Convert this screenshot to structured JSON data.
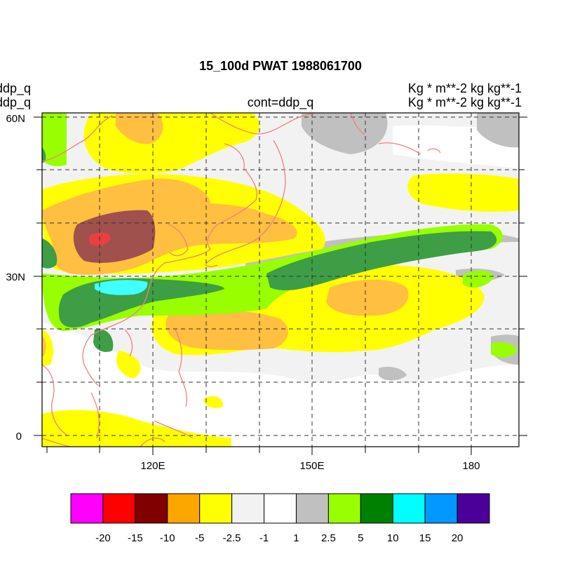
{
  "title": "15_100d PWAT  1988061700",
  "left_labels": [
    "ddp_q",
    "ddp_q"
  ],
  "center_label": "cont=ddp_q",
  "right_labels": [
    "Kg  * m**-2 kg kg**-1",
    "Kg  * m**-2 kg kg**-1"
  ],
  "map": {
    "lat_range": [
      -2,
      61
    ],
    "lon_range": [
      100,
      190
    ],
    "lat_tick_labels": [
      "60N",
      "30N",
      "0"
    ],
    "lat_tick_values": [
      60,
      30,
      0
    ],
    "lon_tick_labels": [
      "120E",
      "150E",
      "180"
    ],
    "lon_tick_values": [
      120,
      150,
      180
    ],
    "gridlines": "dashed, every 10 degrees",
    "coastline_color": "#f08080"
  },
  "colorbar": {
    "labels": [
      "-20",
      "-15",
      "-10",
      "-5",
      "-2.5",
      "-1",
      "1",
      "2.5",
      "5",
      "10",
      "15",
      "20"
    ],
    "colors": [
      "#ff00ff",
      "#ff0000",
      "#800000",
      "#ffa500",
      "#ffff00",
      "#f2f2f2",
      "#ffffff",
      "#c0c0c0",
      "#99ff00",
      "#008000",
      "#00ffff",
      "#0099ff",
      "#4b0099"
    ]
  }
}
